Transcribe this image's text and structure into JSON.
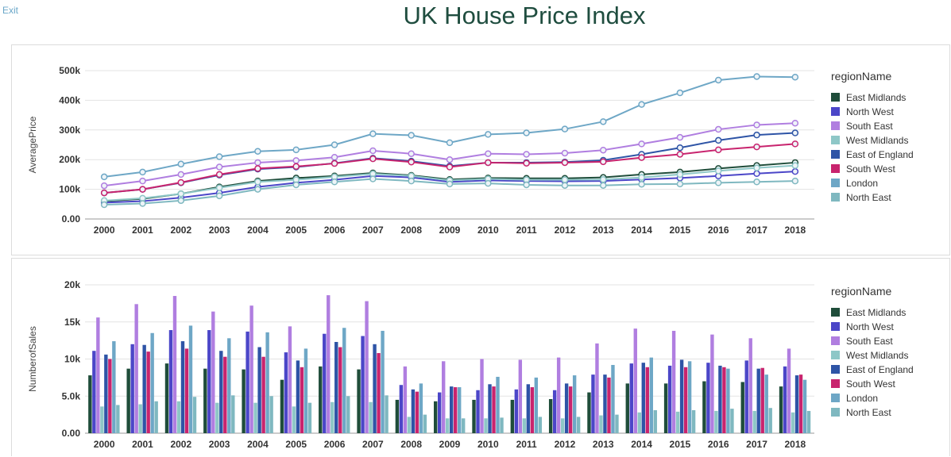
{
  "nav": {
    "exit_label": "Exit"
  },
  "title": "UK House Price Index",
  "colors": {
    "East Midlands": "#1f4d3a",
    "North West": "#4b46c8",
    "South East": "#b07ee0",
    "West Midlands": "#8ec7c7",
    "East of England": "#2e54a6",
    "South West": "#c8246e",
    "London": "#6ea7c6",
    "North East": "#7fb8c0"
  },
  "chart_data": [
    {
      "type": "line",
      "ylabel": "AveragePrice",
      "xlabel": "",
      "legend_title": "regionName",
      "legend_position": "right",
      "grid": true,
      "x": [
        "2000",
        "2001",
        "2002",
        "2003",
        "2004",
        "2005",
        "2006",
        "2007",
        "2008",
        "2009",
        "2010",
        "2011",
        "2012",
        "2013",
        "2014",
        "2015",
        "2016",
        "2017",
        "2018"
      ],
      "ylim": [
        0,
        500000
      ],
      "yticks": [
        0,
        100000,
        200000,
        300000,
        400000,
        500000
      ],
      "ytick_labels": [
        "0.00",
        "100k",
        "200k",
        "300k",
        "400k",
        "500k"
      ],
      "series": [
        {
          "name": "East Midlands",
          "values": [
            60000,
            68000,
            85000,
            108000,
            128000,
            138000,
            145000,
            155000,
            147000,
            133000,
            138000,
            137000,
            137000,
            140000,
            150000,
            158000,
            170000,
            180000,
            190000
          ]
        },
        {
          "name": "North West",
          "values": [
            55000,
            60000,
            72000,
            88000,
            108000,
            122000,
            132000,
            145000,
            140000,
            125000,
            130000,
            128000,
            127000,
            128000,
            133000,
            138000,
            145000,
            153000,
            160000
          ]
        },
        {
          "name": "South East",
          "values": [
            112000,
            128000,
            150000,
            175000,
            190000,
            197000,
            208000,
            230000,
            220000,
            200000,
            220000,
            218000,
            222000,
            232000,
            253000,
            275000,
            302000,
            317000,
            323000
          ]
        },
        {
          "name": "West Midlands",
          "values": [
            62000,
            70000,
            85000,
            105000,
            125000,
            132000,
            142000,
            152000,
            145000,
            130000,
            135000,
            132000,
            132000,
            133000,
            140000,
            150000,
            162000,
            172000,
            180000
          ]
        },
        {
          "name": "East of England",
          "values": [
            88000,
            100000,
            122000,
            148000,
            168000,
            175000,
            188000,
            205000,
            195000,
            178000,
            190000,
            190000,
            192000,
            198000,
            218000,
            240000,
            265000,
            283000,
            290000
          ]
        },
        {
          "name": "South West",
          "values": [
            88000,
            100000,
            123000,
            150000,
            170000,
            177000,
            187000,
            203000,
            192000,
            175000,
            190000,
            188000,
            190000,
            193000,
            207000,
            218000,
            233000,
            243000,
            253000
          ]
        },
        {
          "name": "London",
          "values": [
            142000,
            158000,
            185000,
            210000,
            228000,
            233000,
            250000,
            287000,
            282000,
            257000,
            285000,
            290000,
            303000,
            328000,
            386000,
            425000,
            468000,
            480000,
            478000
          ]
        },
        {
          "name": "North East",
          "values": [
            48000,
            52000,
            62000,
            78000,
            100000,
            115000,
            125000,
            135000,
            128000,
            118000,
            120000,
            115000,
            113000,
            113000,
            117000,
            118000,
            122000,
            125000,
            128000
          ]
        }
      ]
    },
    {
      "type": "bar",
      "ylabel": "NumberofSales",
      "xlabel": "",
      "legend_title": "regionName",
      "legend_position": "right",
      "grid": true,
      "categories": [
        "2000",
        "2001",
        "2002",
        "2003",
        "2004",
        "2005",
        "2006",
        "2007",
        "2008",
        "2009",
        "2010",
        "2011",
        "2012",
        "2013",
        "2014",
        "2015",
        "2016",
        "2017",
        "2018"
      ],
      "ylim": [
        0,
        20000
      ],
      "yticks": [
        0,
        5000,
        10000,
        15000,
        20000
      ],
      "ytick_labels": [
        "0.00",
        "5.0k",
        "10k",
        "15k",
        "20k"
      ],
      "series": [
        {
          "name": "East Midlands",
          "values": [
            7800,
            8700,
            9400,
            8700,
            8600,
            7200,
            9000,
            8600,
            4500,
            4300,
            4500,
            4500,
            4600,
            5500,
            6700,
            6700,
            7000,
            6900,
            6300
          ]
        },
        {
          "name": "North West",
          "values": [
            11100,
            12000,
            13900,
            13900,
            13700,
            10900,
            13400,
            13100,
            6500,
            5500,
            5800,
            5900,
            5800,
            7900,
            9400,
            9100,
            9500,
            9800,
            9000
          ]
        },
        {
          "name": "South East",
          "values": [
            15600,
            17400,
            18500,
            16400,
            17200,
            14400,
            18600,
            17800,
            9000,
            9700,
            10000,
            9900,
            10200,
            12100,
            14100,
            13800,
            13300,
            12800,
            11400
          ]
        },
        {
          "name": "West Midlands",
          "values": [
            3600,
            3900,
            4300,
            4100,
            4100,
            3600,
            4200,
            4200,
            2200,
            2000,
            2000,
            2000,
            2000,
            2400,
            2800,
            2900,
            3000,
            3000,
            2800
          ]
        },
        {
          "name": "East of England",
          "values": [
            10600,
            11900,
            12400,
            11100,
            11600,
            9800,
            12300,
            12000,
            5900,
            6300,
            6600,
            6600,
            6700,
            7900,
            9500,
            9900,
            9100,
            8700,
            7800
          ]
        },
        {
          "name": "South West",
          "values": [
            10000,
            11000,
            11400,
            10300,
            10300,
            8900,
            11600,
            10800,
            5600,
            6200,
            6300,
            6200,
            6300,
            7500,
            8900,
            8900,
            8900,
            8800,
            7900
          ]
        },
        {
          "name": "London",
          "values": [
            12400,
            13500,
            14500,
            12800,
            13600,
            11400,
            14200,
            13800,
            6700,
            6200,
            7600,
            7500,
            7800,
            9200,
            10200,
            9700,
            8700,
            7900,
            7200
          ]
        },
        {
          "name": "North East",
          "values": [
            3800,
            4300,
            4900,
            5100,
            5000,
            4100,
            5000,
            5100,
            2500,
            2000,
            2100,
            2200,
            2200,
            2500,
            3100,
            3100,
            3300,
            3400,
            3000
          ]
        }
      ]
    }
  ]
}
